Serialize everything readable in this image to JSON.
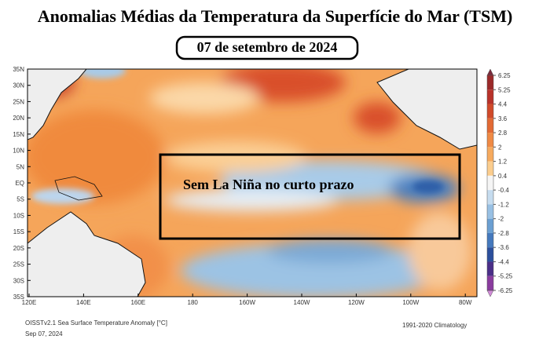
{
  "header": {
    "title": "Anomalias Médias da Temperatura da Superfície do Mar (TSM)",
    "date": "07 de setembro de 2024"
  },
  "annotation": "Sem La Niña no curto prazo",
  "map": {
    "lat_labels": [
      "35N",
      "30N",
      "25N",
      "20N",
      "15N",
      "10N",
      "5N",
      "EQ",
      "5S",
      "10S",
      "15S",
      "20S",
      "25S",
      "30S",
      "35S"
    ],
    "lon_labels": [
      "120E",
      "140E",
      "160E",
      "180",
      "160W",
      "140W",
      "120W",
      "100W",
      "80W"
    ]
  },
  "colorbar": {
    "ticks": [
      6.25,
      5.25,
      4.4,
      3.6,
      2.8,
      2,
      1.2,
      0.4,
      -0.4,
      -1.2,
      -2,
      -2.8,
      -3.6,
      -4.4,
      -5.25,
      -6.25
    ]
  },
  "footer": {
    "product": "OISSTv2.1 Sea Surface Temperature Anomaly [°C]",
    "date": "Sep 07, 2024",
    "climatology": "1991-2020 Climatology"
  }
}
